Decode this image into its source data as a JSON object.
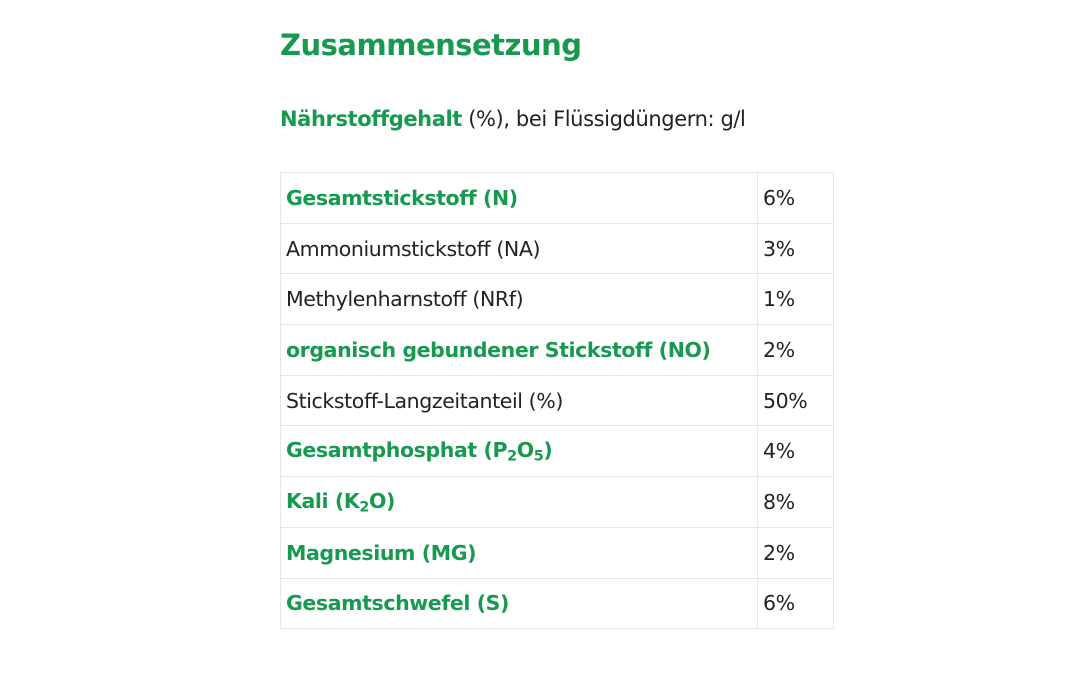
{
  "heading": "Zusammensetzung",
  "subtitle": {
    "bold": "Nährstoffgehalt",
    "rest": " (%), bei Flüssigdüngern: g/l"
  },
  "accent_color": "#179a4f",
  "rows": [
    {
      "label": "Gesamtstickstoff (N)",
      "value": "6%",
      "highlight": true
    },
    {
      "label": "Ammoniumstickstoff (NA)",
      "value": "3%",
      "highlight": false
    },
    {
      "label": "Methylenharnstoff (NRf)",
      "value": "1%",
      "highlight": false
    },
    {
      "label": "organisch gebundener Stickstoff (NO)",
      "value": "2%",
      "highlight": true
    },
    {
      "label": "Stickstoff-Langzeitanteil (%)",
      "value": "50%",
      "highlight": false
    },
    {
      "label_parts": [
        "Gesamtphosphat (P",
        "2",
        "O",
        "5",
        ")"
      ],
      "value": "4%",
      "highlight": true
    },
    {
      "label_parts": [
        "Kali (K",
        "2",
        "O)"
      ],
      "value": "8%",
      "highlight": true
    },
    {
      "label": "Magnesium (MG)",
      "value": "2%",
      "highlight": true
    },
    {
      "label": "Gesamtschwefel (S)",
      "value": "6%",
      "highlight": true
    }
  ]
}
